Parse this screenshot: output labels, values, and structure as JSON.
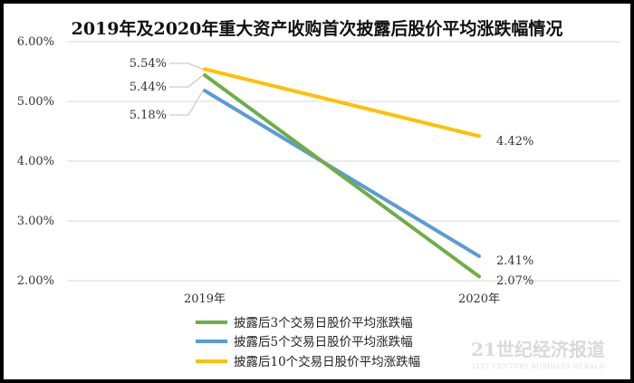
{
  "chart_data": {
    "type": "line",
    "title": "2019年及2020年重大资产收购首次披露后股价平均涨跌幅情况",
    "x": [
      "2019年",
      "2020年"
    ],
    "yticks": [
      "2.00%",
      "3.00%",
      "4.00%",
      "5.00%",
      "6.00%"
    ],
    "ylim": [
      2,
      6
    ],
    "grid": true,
    "legend_position": "bottom",
    "series": [
      {
        "name": "披露后3个交易日股价平均涨跌幅",
        "values": [
          5.44,
          2.07
        ],
        "labels": [
          "5.44%",
          "2.07%"
        ],
        "color": "#70ad47"
      },
      {
        "name": "披露后5个交易日股价平均涨跌幅",
        "values": [
          5.18,
          2.41
        ],
        "labels": [
          "5.18%",
          "2.41%"
        ],
        "color": "#5b9bd5"
      },
      {
        "name": "披露后10个交易日股价平均涨跌幅",
        "values": [
          5.54,
          4.42
        ],
        "labels": [
          "5.54%",
          "4.42%"
        ],
        "color": "#ffc000"
      }
    ]
  },
  "watermark": {
    "main": "21世纪经济报道",
    "sub": "21ST CENTURY BUSINESS HERALD"
  }
}
